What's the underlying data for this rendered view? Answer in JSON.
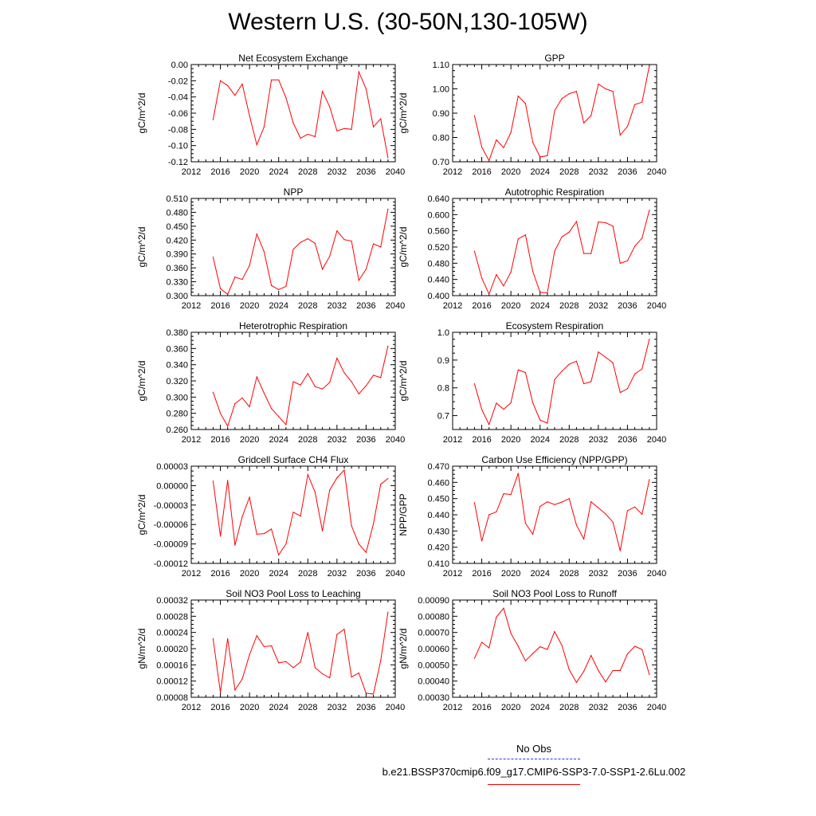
{
  "page_title": "Western U.S. (30-50N,130-105W)",
  "legend": {
    "obs_label": "No Obs",
    "obs_color": "#3030ff",
    "model_label": "b.e21.BSSP370cmip6.f09_g17.CMIP6-SSP3-7.0-SSP1-2.6Lu.002",
    "model_color": "#ff0000"
  },
  "chart_data": [
    {
      "type": "line",
      "title": "Net Ecosystem Exchange",
      "ylabel": "gC/m^2/d",
      "xlim": [
        2012,
        2040
      ],
      "ylim": [
        -0.12,
        0.0
      ],
      "x_ticks": [
        2012,
        2016,
        2020,
        2024,
        2028,
        2032,
        2036,
        2040
      ],
      "y_ticks": [
        "-0.12",
        "-0.10",
        "-0.08",
        "-0.06",
        "-0.04",
        "-0.02",
        "0.00"
      ],
      "color": "#ff0000",
      "x": [
        2015,
        2016,
        2017,
        2018,
        2019,
        2020,
        2021,
        2022,
        2023,
        2024,
        2025,
        2026,
        2027,
        2028,
        2029,
        2030,
        2031,
        2032,
        2033,
        2034,
        2035,
        2036,
        2037,
        2038,
        2039
      ],
      "y": [
        -0.068,
        -0.02,
        -0.026,
        -0.038,
        -0.024,
        -0.063,
        -0.099,
        -0.077,
        -0.019,
        -0.019,
        -0.041,
        -0.072,
        -0.091,
        -0.086,
        -0.089,
        -0.033,
        -0.052,
        -0.082,
        -0.079,
        -0.08,
        -0.009,
        -0.03,
        -0.077,
        -0.067,
        -0.115
      ]
    },
    {
      "type": "line",
      "title": "GPP",
      "ylabel": "gC/m^2/d",
      "xlim": [
        2012,
        2040
      ],
      "ylim": [
        0.7,
        1.1
      ],
      "x_ticks": [
        2012,
        2016,
        2020,
        2024,
        2028,
        2032,
        2036,
        2040
      ],
      "y_ticks": [
        "0.70",
        "0.80",
        "0.90",
        "1.00",
        "1.10"
      ],
      "color": "#ff0000",
      "x": [
        2015,
        2016,
        2017,
        2018,
        2019,
        2020,
        2021,
        2022,
        2023,
        2024,
        2025,
        2026,
        2027,
        2028,
        2029,
        2030,
        2031,
        2032,
        2033,
        2034,
        2035,
        2036,
        2037,
        2038,
        2039
      ],
      "y": [
        0.89,
        0.76,
        0.705,
        0.79,
        0.758,
        0.82,
        0.97,
        0.94,
        0.78,
        0.72,
        0.725,
        0.91,
        0.96,
        0.98,
        0.99,
        0.86,
        0.89,
        1.02,
        1.0,
        0.99,
        0.81,
        0.845,
        0.935,
        0.945,
        1.095
      ]
    },
    {
      "type": "line",
      "title": "NPP",
      "ylabel": "gC/m^2/d",
      "xlim": [
        2012,
        2040
      ],
      "ylim": [
        0.3,
        0.51
      ],
      "x_ticks": [
        2012,
        2016,
        2020,
        2024,
        2028,
        2032,
        2036,
        2040
      ],
      "y_ticks": [
        "0.300",
        "0.330",
        "0.360",
        "0.390",
        "0.420",
        "0.450",
        "0.480",
        "0.510"
      ],
      "color": "#ff0000",
      "x": [
        2015,
        2016,
        2017,
        2018,
        2019,
        2020,
        2021,
        2022,
        2023,
        2024,
        2025,
        2026,
        2027,
        2028,
        2029,
        2030,
        2031,
        2032,
        2033,
        2034,
        2035,
        2036,
        2037,
        2038,
        2039
      ],
      "y": [
        0.383,
        0.315,
        0.303,
        0.34,
        0.335,
        0.365,
        0.433,
        0.395,
        0.322,
        0.313,
        0.32,
        0.4,
        0.415,
        0.423,
        0.413,
        0.357,
        0.385,
        0.44,
        0.421,
        0.418,
        0.333,
        0.357,
        0.412,
        0.405,
        0.487
      ]
    },
    {
      "type": "line",
      "title": "Autotrophic Respiration",
      "ylabel": "gC/m^2/d",
      "xlim": [
        2012,
        2040
      ],
      "ylim": [
        0.4,
        0.64
      ],
      "x_ticks": [
        2012,
        2016,
        2020,
        2024,
        2028,
        2032,
        2036,
        2040
      ],
      "y_ticks": [
        "0.400",
        "0.440",
        "0.480",
        "0.520",
        "0.560",
        "0.600",
        "0.640"
      ],
      "color": "#ff0000",
      "x": [
        2015,
        2016,
        2017,
        2018,
        2019,
        2020,
        2021,
        2022,
        2023,
        2024,
        2025,
        2026,
        2027,
        2028,
        2029,
        2030,
        2031,
        2032,
        2033,
        2034,
        2035,
        2036,
        2037,
        2038,
        2039
      ],
      "y": [
        0.51,
        0.443,
        0.404,
        0.452,
        0.424,
        0.458,
        0.54,
        0.55,
        0.46,
        0.408,
        0.407,
        0.51,
        0.545,
        0.557,
        0.583,
        0.504,
        0.504,
        0.582,
        0.58,
        0.572,
        0.48,
        0.486,
        0.522,
        0.542,
        0.611
      ]
    },
    {
      "type": "line",
      "title": "Heterotrophic Respiration",
      "ylabel": "gC/m^2/d",
      "xlim": [
        2012,
        2040
      ],
      "ylim": [
        0.26,
        0.38
      ],
      "x_ticks": [
        2012,
        2016,
        2020,
        2024,
        2028,
        2032,
        2036,
        2040
      ],
      "y_ticks": [
        "0.260",
        "0.280",
        "0.300",
        "0.320",
        "0.340",
        "0.360",
        "0.380"
      ],
      "color": "#ff0000",
      "x": [
        2015,
        2016,
        2017,
        2018,
        2019,
        2020,
        2021,
        2022,
        2023,
        2024,
        2025,
        2026,
        2027,
        2028,
        2029,
        2030,
        2031,
        2032,
        2033,
        2034,
        2035,
        2036,
        2037,
        2038,
        2039
      ],
      "y": [
        0.306,
        0.28,
        0.264,
        0.292,
        0.299,
        0.288,
        0.325,
        0.305,
        0.286,
        0.276,
        0.266,
        0.319,
        0.315,
        0.329,
        0.313,
        0.31,
        0.318,
        0.348,
        0.33,
        0.319,
        0.304,
        0.314,
        0.327,
        0.324,
        0.363
      ]
    },
    {
      "type": "line",
      "title": "Ecosystem Respiration",
      "ylabel": "gC/m^2/d",
      "xlim": [
        2012,
        2040
      ],
      "ylim": [
        0.65,
        1.0
      ],
      "x_ticks": [
        2012,
        2016,
        2020,
        2024,
        2028,
        2032,
        2036,
        2040
      ],
      "y_ticks": [
        "0.7",
        "0.8",
        "0.9",
        "1.0"
      ],
      "y_tick_values": [
        0.7,
        0.8,
        0.9,
        1.0
      ],
      "color": "#ff0000",
      "x": [
        2015,
        2016,
        2017,
        2018,
        2019,
        2020,
        2021,
        2022,
        2023,
        2024,
        2025,
        2026,
        2027,
        2028,
        2029,
        2030,
        2031,
        2032,
        2033,
        2034,
        2035,
        2036,
        2037,
        2038,
        2039
      ],
      "y": [
        0.815,
        0.722,
        0.668,
        0.745,
        0.723,
        0.746,
        0.865,
        0.855,
        0.746,
        0.684,
        0.673,
        0.83,
        0.86,
        0.885,
        0.896,
        0.815,
        0.822,
        0.929,
        0.91,
        0.89,
        0.783,
        0.797,
        0.85,
        0.868,
        0.975
      ]
    },
    {
      "type": "line",
      "title": "Gridcell Surface CH4 Flux",
      "ylabel": "gC/m^2/d",
      "xlim": [
        2012,
        2040
      ],
      "ylim": [
        -0.00012,
        3e-05
      ],
      "x_ticks": [
        2012,
        2016,
        2020,
        2024,
        2028,
        2032,
        2036,
        2040
      ],
      "y_ticks": [
        "-0.00012",
        "-0.00009",
        "-0.00006",
        "-0.00003",
        "0.00000",
        "0.00003"
      ],
      "color": "#ff0000",
      "x": [
        2015,
        2016,
        2017,
        2018,
        2019,
        2020,
        2021,
        2022,
        2023,
        2024,
        2025,
        2026,
        2027,
        2028,
        2029,
        2030,
        2031,
        2032,
        2033,
        2034,
        2035,
        2036,
        2037,
        2038,
        2039
      ],
      "y": [
        7e-06,
        -7.8e-05,
        8e-06,
        -9.2e-05,
        -4.8e-05,
        -1.8e-05,
        -7.5e-05,
        -7.4e-05,
        -6.7e-05,
        -0.000107,
        -9e-05,
        -4.1e-05,
        -4.7e-05,
        1.7e-05,
        -1e-05,
        -7e-05,
        -7e-06,
        1.2e-05,
        2.4e-05,
        -6.2e-05,
        -9e-05,
        -0.000103,
        -5.9e-05,
        2e-06,
        1.1e-05
      ]
    },
    {
      "type": "line",
      "title": "Carbon Use Efficiency (NPP/GPP)",
      "ylabel": "NPP/GPP",
      "xlim": [
        2012,
        2040
      ],
      "ylim": [
        0.41,
        0.47
      ],
      "x_ticks": [
        2012,
        2016,
        2020,
        2024,
        2028,
        2032,
        2036,
        2040
      ],
      "y_ticks": [
        "0.410",
        "0.420",
        "0.430",
        "0.440",
        "0.450",
        "0.460",
        "0.470"
      ],
      "color": "#ff0000",
      "x": [
        2015,
        2016,
        2017,
        2018,
        2019,
        2020,
        2021,
        2022,
        2023,
        2024,
        2025,
        2026,
        2027,
        2028,
        2029,
        2030,
        2031,
        2032,
        2033,
        2034,
        2035,
        2036,
        2037,
        2038,
        2039
      ],
      "y": [
        0.4475,
        0.4238,
        0.44,
        0.4418,
        0.453,
        0.4525,
        0.4655,
        0.4348,
        0.428,
        0.4452,
        0.448,
        0.4463,
        0.4478,
        0.45,
        0.4337,
        0.425,
        0.448,
        0.4443,
        0.4405,
        0.4355,
        0.4178,
        0.4425,
        0.4448,
        0.4403,
        0.4617
      ]
    },
    {
      "type": "line",
      "title": "Soil NO3 Pool Loss to Leaching",
      "ylabel": "gN/m^2/d",
      "xlim": [
        2012,
        2040
      ],
      "ylim": [
        8e-05,
        0.00032
      ],
      "x_ticks": [
        2012,
        2016,
        2020,
        2024,
        2028,
        2032,
        2036,
        2040
      ],
      "y_ticks": [
        "0.00008",
        "0.00012",
        "0.00016",
        "0.00020",
        "0.00024",
        "0.00028",
        "0.00032"
      ],
      "color": "#ff0000",
      "x": [
        2015,
        2016,
        2017,
        2018,
        2019,
        2020,
        2021,
        2022,
        2023,
        2024,
        2025,
        2026,
        2027,
        2028,
        2029,
        2030,
        2031,
        2032,
        2033,
        2034,
        2035,
        2036,
        2037,
        2038,
        2039
      ],
      "y": [
        0.000225,
        9.2e-05,
        0.000225,
        9.8e-05,
        0.000125,
        0.000185,
        0.000232,
        0.000205,
        0.000207,
        0.000165,
        0.000168,
        0.000153,
        0.000167,
        0.00024,
        0.000153,
        0.000138,
        0.000128,
        0.000235,
        0.000248,
        0.00013,
        0.00014,
        9e-05,
        8.8e-05,
        0.00017,
        0.00029
      ]
    },
    {
      "type": "line",
      "title": "Soil NO3 Pool Loss to Runoff",
      "ylabel": "gN/m^2/d",
      "xlim": [
        2012,
        2040
      ],
      "ylim": [
        0.0003,
        0.0009
      ],
      "x_ticks": [
        2012,
        2016,
        2020,
        2024,
        2028,
        2032,
        2036,
        2040
      ],
      "y_ticks": [
        "0.00030",
        "0.00040",
        "0.00050",
        "0.00060",
        "0.00070",
        "0.00080",
        "0.00090"
      ],
      "color": "#ff0000",
      "x": [
        2015,
        2016,
        2017,
        2018,
        2019,
        2020,
        2021,
        2022,
        2023,
        2024,
        2025,
        2026,
        2027,
        2028,
        2029,
        2030,
        2031,
        2032,
        2033,
        2034,
        2035,
        2036,
        2037,
        2038,
        2039
      ],
      "y": [
        0.00054,
        0.00064,
        0.000605,
        0.000795,
        0.00085,
        0.000695,
        0.000615,
        0.000525,
        0.00057,
        0.000612,
        0.000595,
        0.000705,
        0.00062,
        0.00047,
        0.000392,
        0.00046,
        0.000558,
        0.000465,
        0.000395,
        0.000465,
        0.000465,
        0.000567,
        0.000615,
        0.000595,
        0.00044
      ]
    }
  ]
}
